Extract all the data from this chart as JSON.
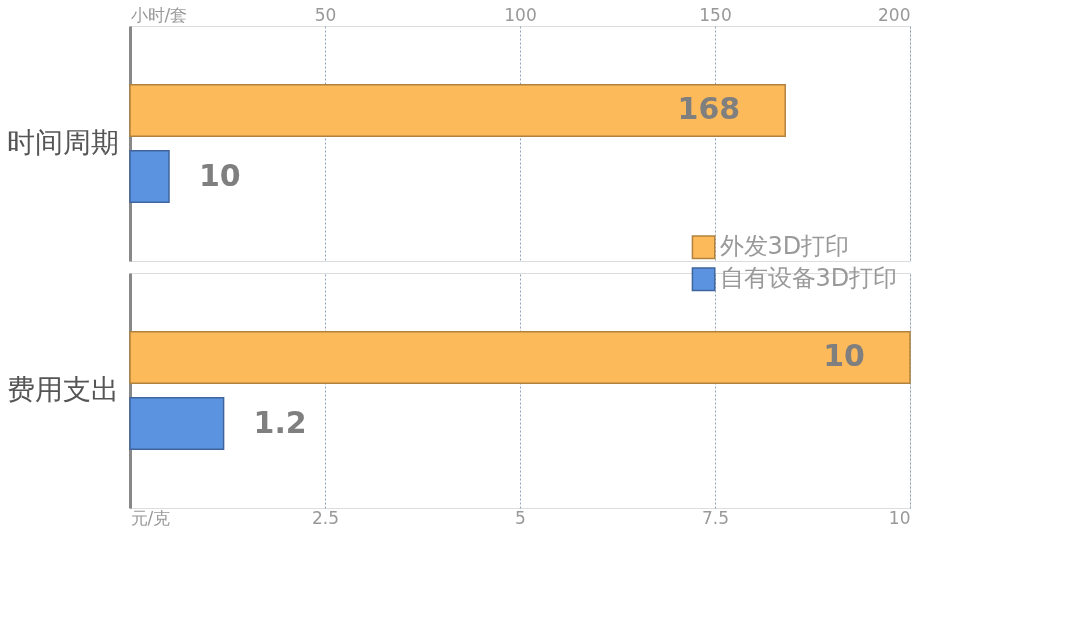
{
  "chart_data": [
    {
      "type": "bar",
      "orientation": "horizontal",
      "categories": [
        "时间周期"
      ],
      "series": [
        {
          "name": "外发3D打印",
          "color": "#fdba5a",
          "values": [
            168
          ]
        },
        {
          "name": "自有设备3D打印",
          "color": "#5b93e0",
          "values": [
            10
          ]
        }
      ],
      "x2lim": [
        0,
        200
      ],
      "x2ticks": [
        {
          "value": 0,
          "label": "小时/套"
        },
        50,
        100,
        150,
        200
      ],
      "grid": "x",
      "legend": "bottom right",
      "data_labels": true
    },
    {
      "type": "bar",
      "orientation": "horizontal",
      "categories": [
        "费用支出"
      ],
      "series": [
        {
          "name": "外发3D打印",
          "color": "#fdba5a",
          "values": [
            10
          ]
        },
        {
          "name": "自有设备3D打印",
          "color": "#5b93e0",
          "values": [
            1.2
          ]
        }
      ],
      "xlim": [
        0,
        10
      ],
      "xticks": [
        {
          "value": 0,
          "label": "元/克"
        },
        2.5,
        5,
        7.5,
        10
      ],
      "grid": "x",
      "legend": false,
      "data_labels": true
    }
  ]
}
